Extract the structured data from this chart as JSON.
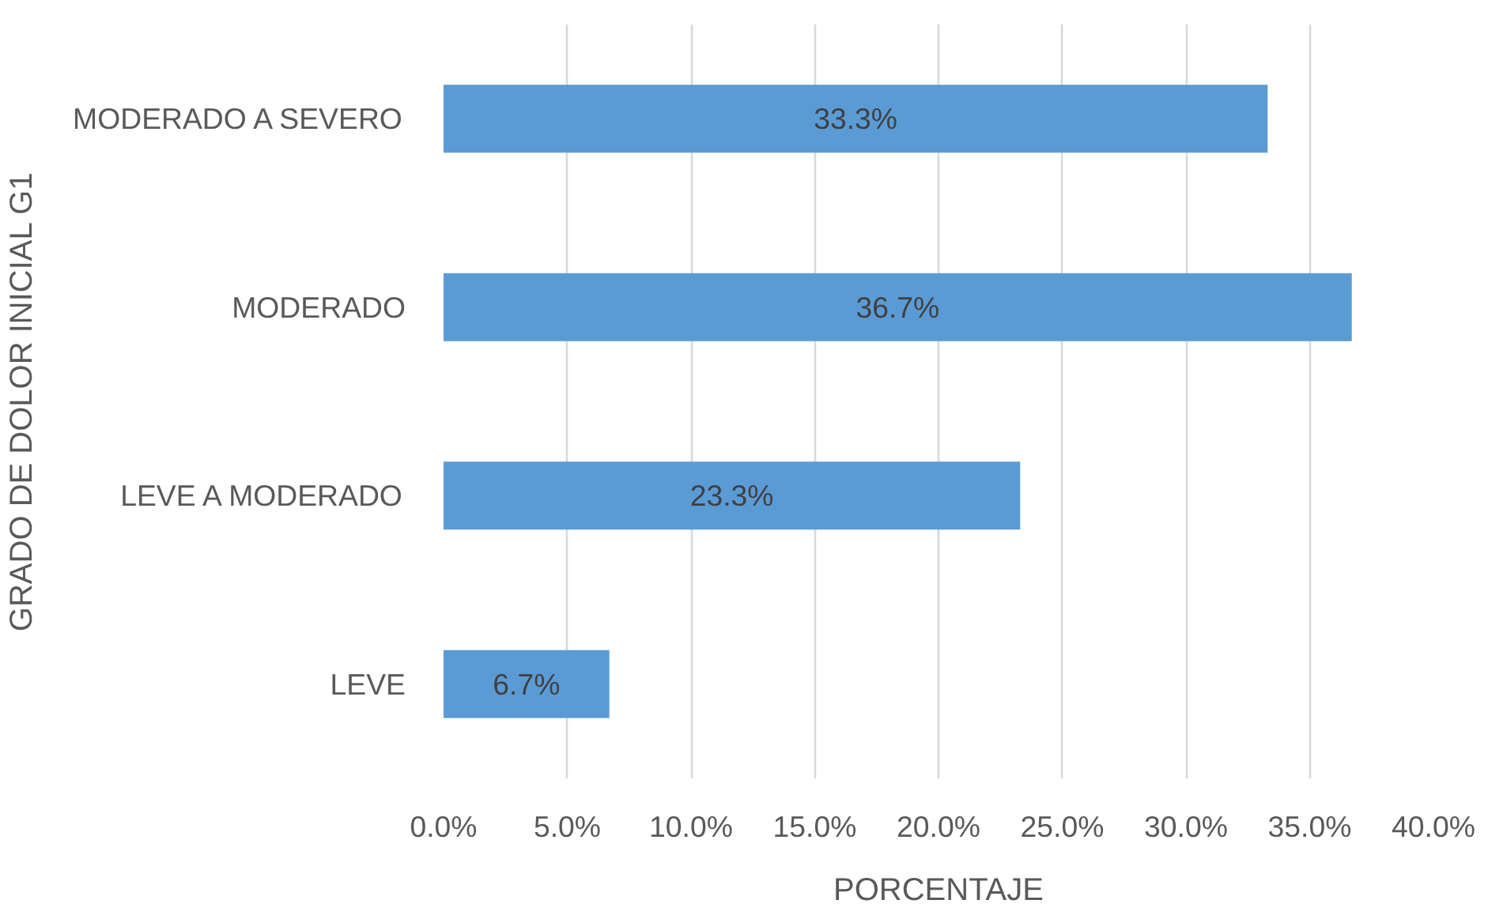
{
  "chart_data": {
    "type": "bar",
    "orientation": "horizontal",
    "xlabel": "PORCENTAJE",
    "ylabel": "GRADO DE DOLOR INICIAL G1",
    "categories": [
      "MODERADO A SEVERO",
      "MODERADO",
      "LEVE A MODERADO",
      "LEVE"
    ],
    "values": [
      33.3,
      36.7,
      23.3,
      6.7
    ],
    "color": "#5b9bd5",
    "value_labels": [
      "33.3%",
      "36.7%",
      "23.3%",
      "6.7%"
    ],
    "xlim": [
      0,
      40
    ],
    "xticks": [
      {
        "value": 0,
        "label": "0.0%"
      },
      {
        "value": 5,
        "label": "5.0%"
      },
      {
        "value": 10,
        "label": "10.0%"
      },
      {
        "value": 15,
        "label": "15.0%"
      },
      {
        "value": 20,
        "label": "20.0%"
      },
      {
        "value": 25,
        "label": "25.0%"
      },
      {
        "value": 30,
        "label": "30.0%"
      },
      {
        "value": 35,
        "label": "35.0%"
      },
      {
        "value": 40,
        "label": "40.0%"
      }
    ],
    "grid": "x"
  }
}
